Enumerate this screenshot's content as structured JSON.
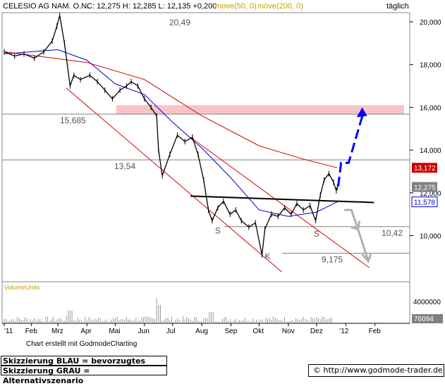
{
  "header": {
    "ticker_label": "CELESIO AG NAM. O.N.",
    "quote_text": "C: 12,275 H: 12,285 L: 12,135 +0,200",
    "ma50_label": "move(50, 0)",
    "ma200_label": "move(200, 0)",
    "period": "täglich"
  },
  "volume_panel": {
    "label": "VolumeUnits",
    "tick_label": "4000000",
    "last_value": "76094"
  },
  "credit": "Chart erstellt mit GodmodeCharting",
  "notes": {
    "blue": "Skizzierung BLAU = bevorzugtes Szenario",
    "gray": "Skizzierung GRAU = Alternativszenario"
  },
  "url": "© http://www.godmode-trader.de",
  "colors": {
    "price": "#000000",
    "ma50": "#0000cc",
    "ma200": "#cc0000",
    "channel": "#dd0000",
    "resistance_zone": "#f9c4c4",
    "scenario_blue": "#0000ff",
    "scenario_gray": "#b0b0b0",
    "badge_red": "#cc0000",
    "badge_gray": "#808080",
    "badge_blue": "#0000cc"
  },
  "chart_data": {
    "type": "line",
    "title": "CELESIO AG NAM. O.N.",
    "frequency": "täglich",
    "x_tick_labels": [
      "'11",
      "Feb",
      "Mrz",
      "Apr",
      "Mai",
      "Jun",
      "Jul",
      "Aug",
      "Sep",
      "Okt",
      "Nov",
      "Dez",
      "'12",
      "Feb"
    ],
    "y_tick_labels": [
      "20,000",
      "18,000",
      "16,000",
      "14,000",
      "12,000",
      "10,000"
    ],
    "ylim": [
      8.3,
      20.5
    ],
    "grid": false,
    "price_series": [
      [
        "2011-01-03",
        18.6
      ],
      [
        "2011-01-14",
        18.4
      ],
      [
        "2011-01-24",
        18.5
      ],
      [
        "2011-02-04",
        18.3
      ],
      [
        "2011-02-14",
        18.6
      ],
      [
        "2011-02-23",
        19.1
      ],
      [
        "2011-02-28",
        19.8
      ],
      [
        "2011-03-03",
        20.3
      ],
      [
        "2011-03-08",
        19.0
      ],
      [
        "2011-03-14",
        17.0
      ],
      [
        "2011-03-18",
        17.5
      ],
      [
        "2011-03-25",
        17.3
      ],
      [
        "2011-04-04",
        17.5
      ],
      [
        "2011-04-12",
        17.2
      ],
      [
        "2011-04-20",
        16.8
      ],
      [
        "2011-04-28",
        16.4
      ],
      [
        "2011-05-06",
        16.8
      ],
      [
        "2011-05-13",
        17.0
      ],
      [
        "2011-05-18",
        17.2
      ],
      [
        "2011-05-25",
        17.0
      ],
      [
        "2011-06-01",
        16.4
      ],
      [
        "2011-06-08",
        16.0
      ],
      [
        "2011-06-14",
        15.6
      ],
      [
        "2011-06-16",
        14.0
      ],
      [
        "2011-06-20",
        12.8
      ],
      [
        "2011-06-28",
        13.8
      ],
      [
        "2011-07-06",
        14.7
      ],
      [
        "2011-07-14",
        14.4
      ],
      [
        "2011-07-22",
        14.6
      ],
      [
        "2011-07-28",
        13.8
      ],
      [
        "2011-08-03",
        12.6
      ],
      [
        "2011-08-08",
        11.2
      ],
      [
        "2011-08-12",
        10.7
      ],
      [
        "2011-08-18",
        11.3
      ],
      [
        "2011-08-24",
        11.6
      ],
      [
        "2011-08-31",
        11.0
      ],
      [
        "2011-09-06",
        11.2
      ],
      [
        "2011-09-12",
        10.7
      ],
      [
        "2011-09-20",
        10.4
      ],
      [
        "2011-09-27",
        10.6
      ],
      [
        "2011-10-04",
        9.1
      ],
      [
        "2011-10-07",
        10.3
      ],
      [
        "2011-10-14",
        11.0
      ],
      [
        "2011-10-21",
        10.9
      ],
      [
        "2011-10-28",
        11.3
      ],
      [
        "2011-11-04",
        11.0
      ],
      [
        "2011-11-10",
        11.5
      ],
      [
        "2011-11-17",
        11.2
      ],
      [
        "2011-11-24",
        11.4
      ],
      [
        "2011-11-30",
        10.7
      ],
      [
        "2011-12-05",
        11.9
      ],
      [
        "2011-12-09",
        12.6
      ],
      [
        "2011-12-14",
        12.9
      ],
      [
        "2011-12-19",
        12.5
      ],
      [
        "2011-12-22",
        12.1
      ],
      [
        "2011-12-23",
        12.275
      ]
    ],
    "series": [
      {
        "name": "move(50, 0)",
        "values": [
          [
            "2011-01-03",
            18.5
          ],
          [
            "2011-03-01",
            18.7
          ],
          [
            "2011-04-01",
            18.2
          ],
          [
            "2011-05-01",
            17.1
          ],
          [
            "2011-06-01",
            16.6
          ],
          [
            "2011-07-01",
            15.3
          ],
          [
            "2011-08-01",
            14.1
          ],
          [
            "2011-09-01",
            12.7
          ],
          [
            "2011-10-01",
            11.2
          ],
          [
            "2011-11-01",
            10.9
          ],
          [
            "2011-12-01",
            11.1
          ],
          [
            "2011-12-23",
            11.578
          ]
        ]
      },
      {
        "name": "move(200, 0)",
        "values": [
          [
            "2011-01-03",
            18.6
          ],
          [
            "2011-04-01",
            18.1
          ],
          [
            "2011-06-01",
            17.3
          ],
          [
            "2011-08-01",
            15.6
          ],
          [
            "2011-10-01",
            14.2
          ],
          [
            "2011-11-15",
            13.6
          ],
          [
            "2011-12-23",
            13.172
          ]
        ]
      }
    ],
    "horizontal_levels": [
      {
        "value": 20.49,
        "label": "20,49"
      },
      {
        "value": 15.685,
        "label": "15,685"
      },
      {
        "value": 13.54,
        "label": "13,54"
      },
      {
        "value": 10.42,
        "label": "10,42"
      },
      {
        "value": 9.175,
        "label": "9,175"
      }
    ],
    "resistance_zone": {
      "from": 15.685,
      "to": 16.1
    },
    "neckline": {
      "from": [
        "2011-07-20",
        11.85
      ],
      "to": [
        "2012-01-31",
        11.55
      ]
    },
    "channel_lines": [
      {
        "from": [
          "2011-03-10",
          16.9
        ],
        "to": [
          "2011-10-25",
          8.3
        ]
      },
      {
        "from": [
          "2011-07-20",
          14.6
        ],
        "to": [
          "2012-01-26",
          8.5
        ]
      }
    ],
    "annotations": [
      {
        "text": "S",
        "date": "2011-08-15",
        "value": 10.1
      },
      {
        "text": "K",
        "date": "2011-10-07",
        "value": 8.9
      },
      {
        "text": "S",
        "date": "2011-11-28",
        "value": 9.95
      }
    ],
    "scenario_blue": [
      [
        "2011-12-24",
        12.3
      ],
      [
        "2011-12-27",
        13.4
      ],
      [
        "2012-01-04",
        13.4
      ],
      [
        "2012-01-20",
        15.8
      ]
    ],
    "scenario_gray": [
      [
        "2011-12-30",
        11.2
      ],
      [
        "2012-01-07",
        11.2
      ],
      [
        "2012-01-14",
        10.3
      ],
      [
        "2012-01-25",
        8.8
      ]
    ],
    "last_values": {
      "ma200": "13,172",
      "close": "12,275",
      "ma50": "11,578"
    },
    "volume": {
      "ylabel": "VolumeUnits",
      "ylim": [
        0,
        6000000
      ],
      "last": 76094
    }
  }
}
